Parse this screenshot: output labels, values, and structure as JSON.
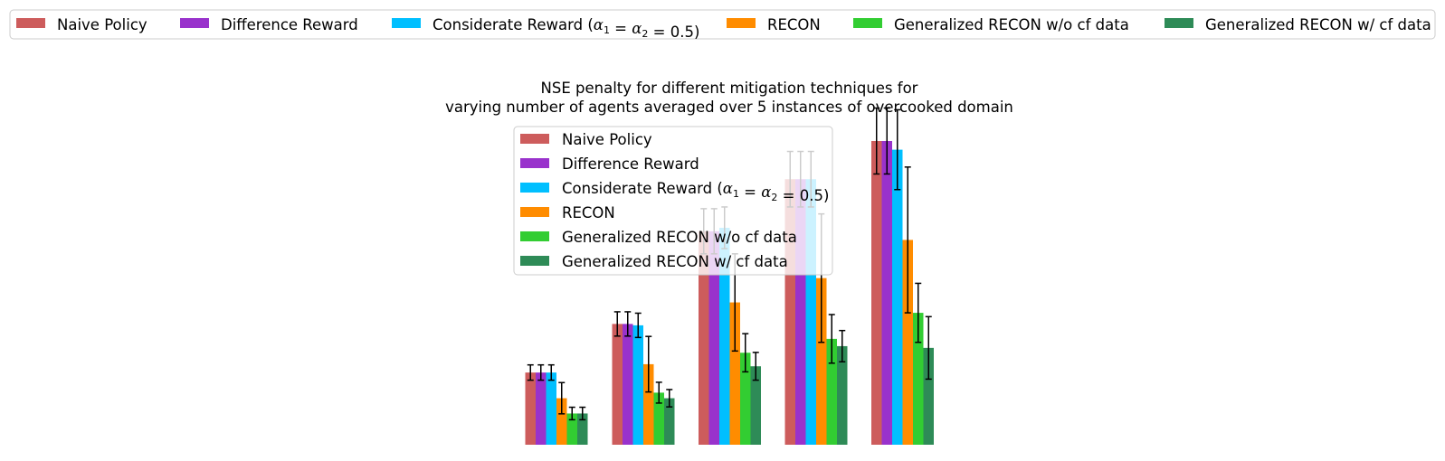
{
  "chart_data": {
    "type": "bar",
    "title": "NSE penalty for different mitigation techniques for\nvarying number of agents averaged over 5 instances of overcooked domain",
    "xlabel": "",
    "ylabel": "",
    "categories": [
      "",
      "",
      "",
      "",
      ""
    ],
    "ylim": [
      0,
      100
    ],
    "grid": false,
    "axes_visible": false,
    "legends": [
      "top (outside plot)",
      "upper-center (inside plot)"
    ],
    "series": [
      {
        "name": "Naive Policy",
        "color": "#cd5c5c",
        "values": [
          20.8,
          34.8,
          61.5,
          76.5,
          87.5
        ],
        "errors": [
          2.2,
          3.5,
          6.5,
          8.0,
          9.5
        ]
      },
      {
        "name": "Difference Reward",
        "color": "#9932cc",
        "values": [
          20.8,
          34.8,
          61.5,
          76.5,
          87.5
        ],
        "errors": [
          2.2,
          3.5,
          6.5,
          8.0,
          9.5
        ]
      },
      {
        "name": "Considerate Reward ($\\alpha_1 = \\alpha_2 = 0.5$)",
        "color": "#00bfff",
        "values": [
          20.8,
          34.4,
          62.5,
          76.5,
          85.0
        ],
        "errors": [
          2.2,
          3.5,
          6.0,
          8.0,
          11.5
        ]
      },
      {
        "name": "RECON",
        "color": "#ff8c00",
        "values": [
          13.4,
          23.2,
          41.0,
          48.0,
          59.0
        ],
        "errors": [
          4.5,
          8.0,
          14.0,
          18.5,
          21.0
        ]
      },
      {
        "name": "Generalized RECON w/o cf data",
        "color": "#32cd32",
        "values": [
          9.0,
          15.0,
          26.5,
          30.5,
          38.0
        ],
        "errors": [
          1.8,
          3.0,
          5.5,
          7.0,
          8.5
        ]
      },
      {
        "name": "Generalized RECON w/ cf data",
        "color": "#2e8b57",
        "values": [
          9.0,
          13.4,
          22.6,
          28.4,
          27.9
        ],
        "errors": [
          1.8,
          2.5,
          4.0,
          4.5,
          9.0
        ]
      }
    ]
  }
}
